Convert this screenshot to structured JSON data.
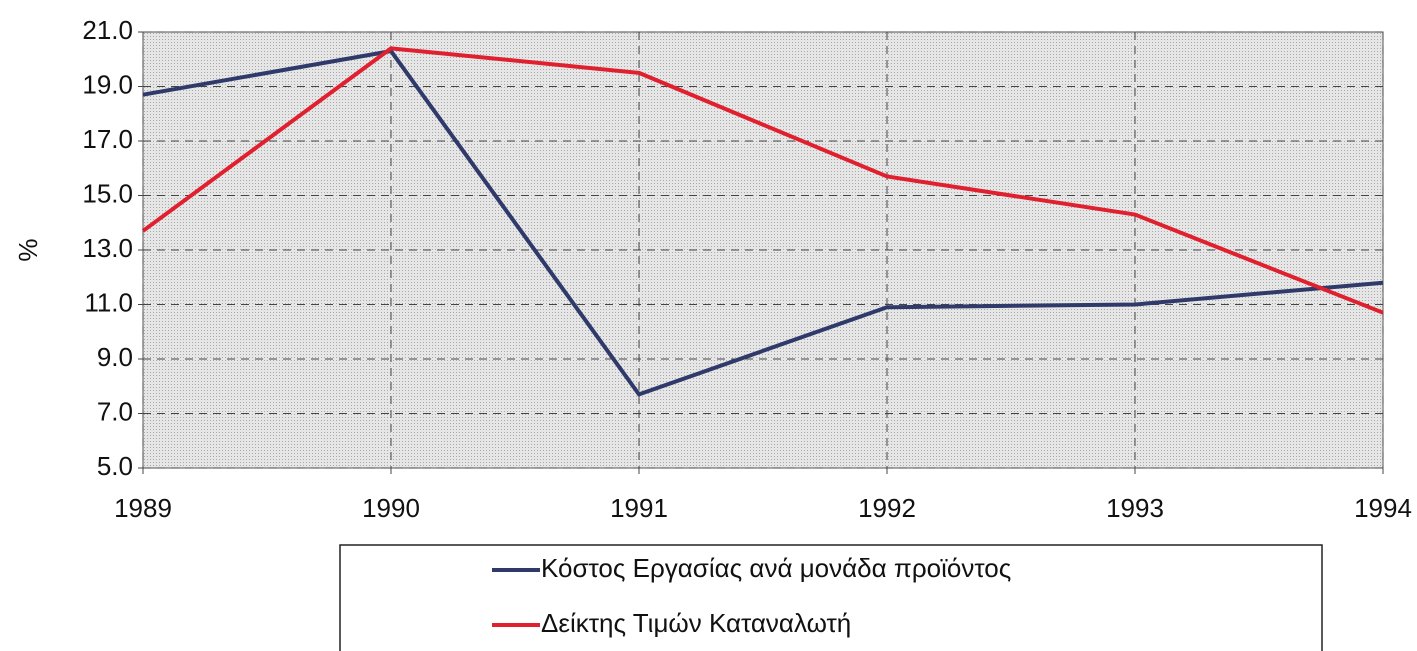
{
  "chart_data": {
    "type": "line",
    "y_label": "%",
    "x": [
      1989,
      1990,
      1991,
      1992,
      1993,
      1994
    ],
    "xlim": [
      1989,
      1994
    ],
    "xticks": [
      1989,
      1990,
      1991,
      1992,
      1993,
      1994
    ],
    "ylim": [
      5,
      21
    ],
    "yticks": [
      {
        "value": 5,
        "label": "5.0"
      },
      {
        "value": 7,
        "label": "7.0"
      },
      {
        "value": 9,
        "label": "9.0"
      },
      {
        "value": 11,
        "label": "11.0"
      },
      {
        "value": 13,
        "label": "13.0"
      },
      {
        "value": 15,
        "label": "15.0"
      },
      {
        "value": 17,
        "label": "17.0"
      },
      {
        "value": 19,
        "label": "19.0"
      },
      {
        "value": 21,
        "label": "21.0"
      }
    ],
    "grid": true,
    "legend": "bottom",
    "series": [
      {
        "name": "Κόστος Εργασίας ανά μονάδα προϊόντος",
        "color": "#2f3a6b",
        "values": [
          18.7,
          20.3,
          7.7,
          10.9,
          11.0,
          11.8
        ]
      },
      {
        "name": "Δείκτης Τιμών Καταναλωτή",
        "color": "#e0202e",
        "values": [
          13.7,
          20.4,
          19.5,
          15.7,
          14.3,
          10.7
        ]
      }
    ]
  }
}
